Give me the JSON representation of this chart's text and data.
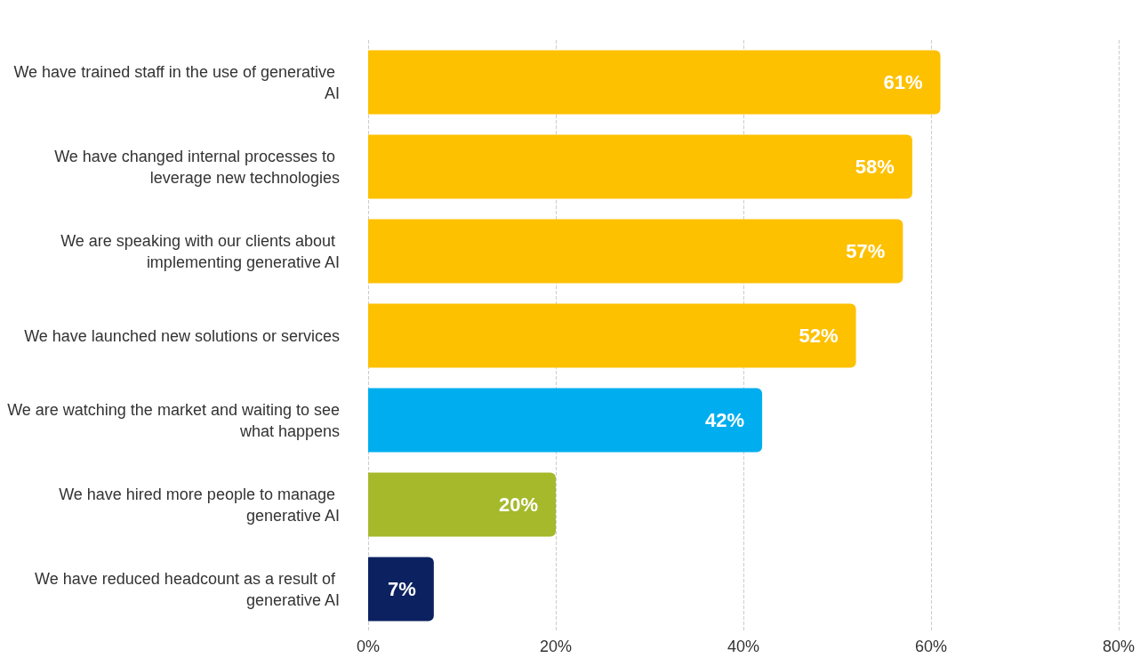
{
  "chart_data": {
    "type": "bar",
    "orientation": "horizontal",
    "categories": [
      "We have trained staff in the use of generative AI",
      "We have changed internal processes to leverage new technologies",
      "We are speaking with our clients about implementing generative AI",
      "We have launched new solutions or services",
      "We are watching the market and waiting to see what happens",
      "We have hired more people to manage generative AI",
      "We have reduced headcount as a result of generative AI"
    ],
    "values": [
      61,
      58,
      57,
      52,
      42,
      20,
      7
    ],
    "value_labels": [
      "61%",
      "58%",
      "57%",
      "52%",
      "42%",
      "20%",
      "7%"
    ],
    "colors": [
      "#fdc100",
      "#fdc100",
      "#fdc100",
      "#fdc100",
      "#00aeef",
      "#a5b92b",
      "#0b2160"
    ],
    "xlim": [
      0,
      80
    ],
    "xticks": [
      {
        "value": 0,
        "label": "0%"
      },
      {
        "value": 20,
        "label": "20%"
      },
      {
        "value": 40,
        "label": "40%"
      },
      {
        "value": 60,
        "label": "60%"
      },
      {
        "value": 80,
        "label": "80%"
      }
    ],
    "grid": "x"
  }
}
